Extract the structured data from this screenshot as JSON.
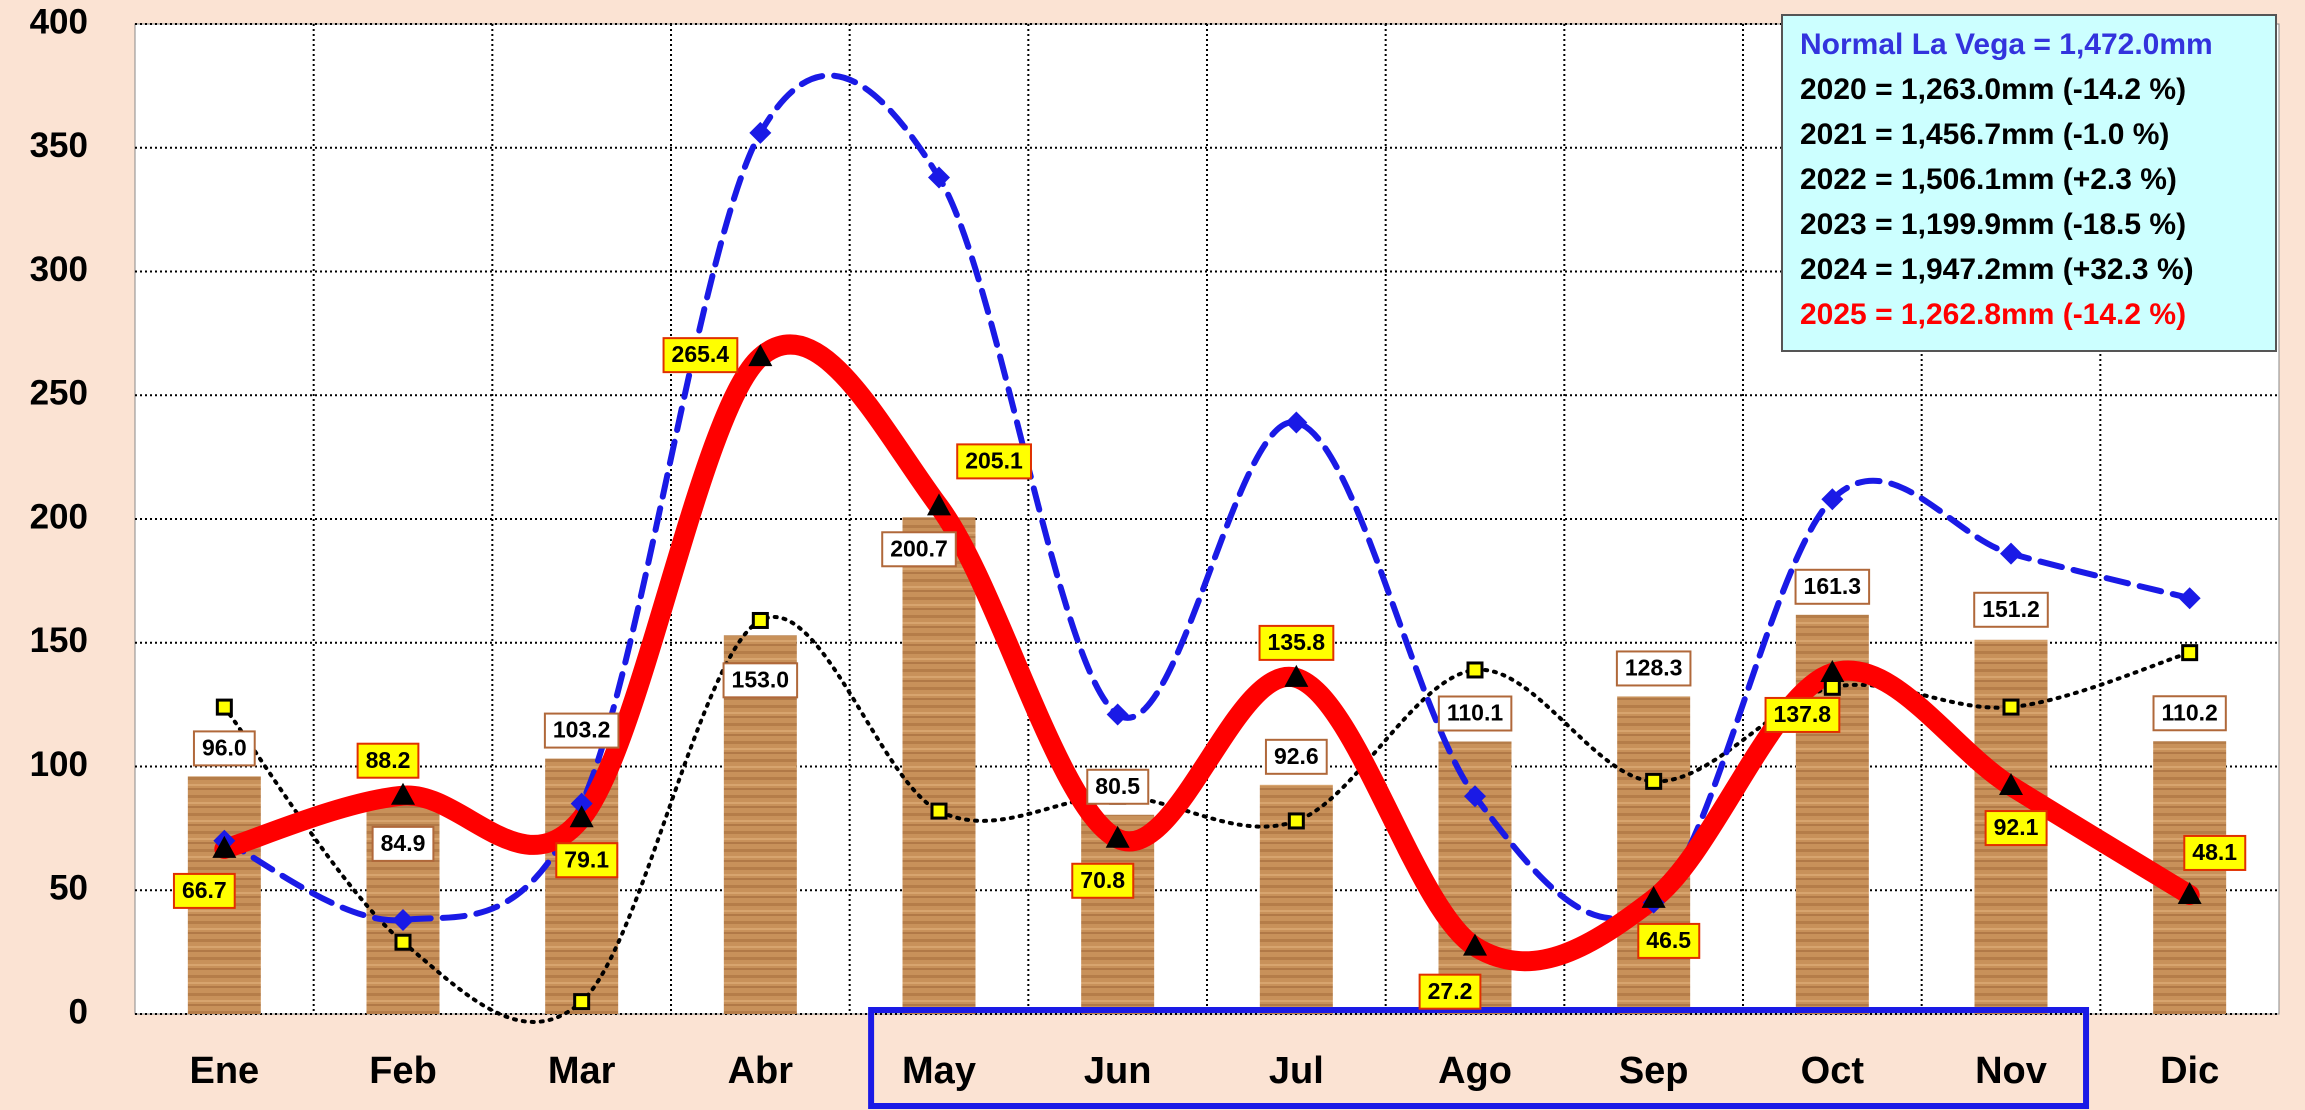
{
  "chart_data": {
    "type": "bar-line",
    "categories": [
      "Ene",
      "Feb",
      "Mar",
      "Abr",
      "May",
      "Jun",
      "Jul",
      "Ago",
      "Sep",
      "Oct",
      "Nov",
      "Dic"
    ],
    "values": [
      96.0,
      84.9,
      103.2,
      153.0,
      200.7,
      80.5,
      92.6,
      110.1,
      128.3,
      161.3,
      151.2,
      110.2
    ],
    "value_labels": [
      "96.0",
      "84.9",
      "103.2",
      "153.0",
      "200.7",
      "80.5",
      "92.6",
      "110.1",
      "128.3",
      "161.3",
      "151.2",
      "110.2"
    ],
    "color": "#c8915a",
    "series": [
      {
        "color": "#000000",
        "style": "dotted",
        "marker": "square",
        "values": [
          124,
          29,
          5,
          159,
          82,
          88,
          78,
          139,
          94,
          132,
          124,
          146
        ]
      },
      {
        "color": "#1a1ae6",
        "style": "dashed",
        "marker": "diamond",
        "values": [
          70,
          38,
          85,
          356,
          338,
          121,
          239,
          88,
          45,
          208,
          186,
          168
        ]
      },
      {
        "color": "#ff0000",
        "style": "solid",
        "marker": "triangle",
        "values": [
          66.7,
          88.2,
          79.1,
          265.4,
          205.1,
          70.8,
          135.8,
          27.2,
          46.5,
          137.8,
          92.1,
          48.1
        ],
        "value_labels": [
          "66.7",
          "88.2",
          "79.1",
          "265.4",
          "205.1",
          "70.8",
          "135.8",
          "27.2",
          "46.5",
          "137.8",
          "92.1",
          "48.1"
        ]
      }
    ],
    "annotations": [
      "Normal La Vega = 1,472.0mm",
      "2020 = 1,263.0mm (-14.2 %)",
      "2021 = 1,456.7mm (-1.0 %)",
      "2022 = 1,506.1mm (+2.3 %)",
      "2023 = 1,199.9mm (-18.5 %)",
      "2024 = 1,947.2mm (+32.3 %)",
      "2025 = 1,262.8mm (-14.2 %)"
    ],
    "ylim": [
      0,
      400
    ],
    "yticks": [
      0,
      50,
      100,
      150,
      200,
      250,
      300,
      350,
      400
    ],
    "grid": true
  }
}
